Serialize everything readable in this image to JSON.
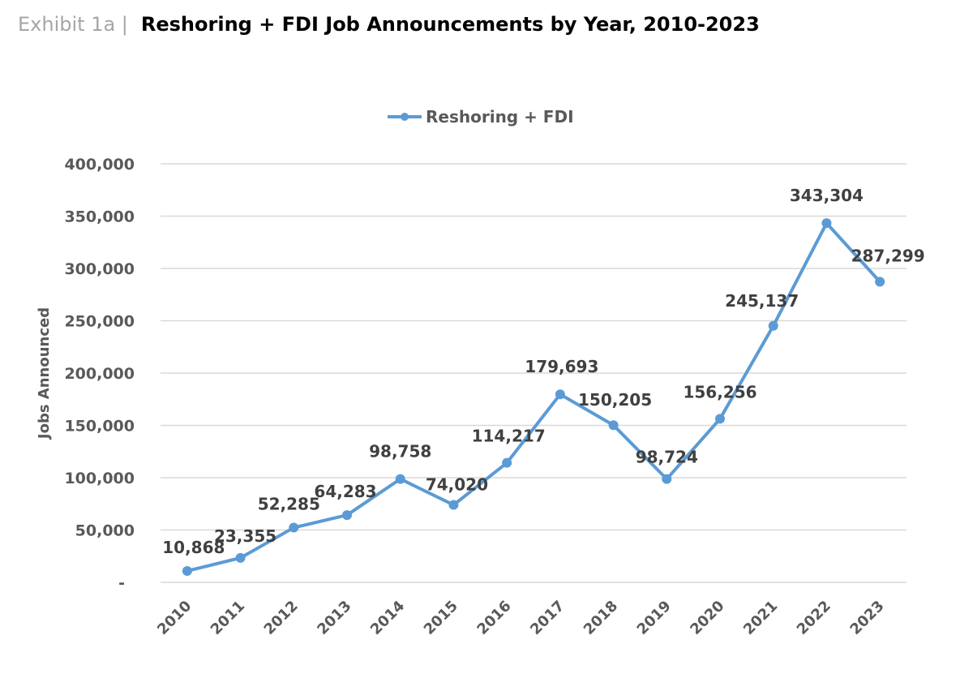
{
  "header": {
    "exhibit_label": "Exhibit 1a |",
    "title": "Reshoring + FDI Job Announcements by Year, 2010-2023"
  },
  "legend": {
    "label": "Reshoring + FDI"
  },
  "colors": {
    "line": "#5b9bd5",
    "gridline": "#d9d9d9",
    "axis_text": "#595959",
    "data_label": "#404040",
    "exhibit_text": "#a6a6a6"
  },
  "chart_data": {
    "type": "line",
    "title": "Reshoring + FDI Job Announcements by Year, 2010-2023",
    "xlabel": "",
    "ylabel": "Jobs Announced",
    "categories": [
      "2010",
      "2011",
      "2012",
      "2013",
      "2014",
      "2015",
      "2016",
      "2017",
      "2018",
      "2019",
      "2020",
      "2021",
      "2022",
      "2023"
    ],
    "series": [
      {
        "name": "Reshoring + FDI",
        "values": [
          10868,
          23355,
          52285,
          64283,
          98758,
          74020,
          114217,
          179693,
          150205,
          98724,
          156256,
          245137,
          343304,
          287299
        ],
        "labels": [
          "10,868",
          "23,355",
          "52,285",
          "64,283",
          "98,758",
          "74,020",
          "114,217",
          "179,693",
          "150,205",
          "98,724",
          "156,256",
          "245,137",
          "343,304",
          "287,299"
        ]
      }
    ],
    "ylim": [
      0,
      400000
    ],
    "yticks": [
      0,
      50000,
      100000,
      150000,
      200000,
      250000,
      300000,
      350000,
      400000
    ],
    "ytick_labels": [
      "-",
      "50,000",
      "100,000",
      "150,000",
      "200,000",
      "250,000",
      "300,000",
      "350,000",
      "400,000"
    ],
    "grid": true,
    "legend_position": "top"
  }
}
